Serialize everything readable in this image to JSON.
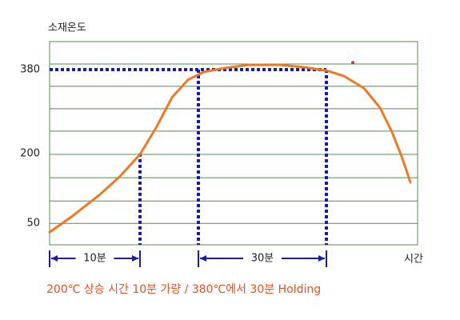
{
  "chart_data": {
    "type": "line",
    "y_label": "소재온도",
    "x_label": "시간",
    "caption": "200℃ 상승 시간 10분 가량 / 380℃에서 30분 Holding",
    "xlim": [
      0,
      460
    ],
    "ylim": [
      4,
      440
    ],
    "yticks": [
      50,
      200,
      380
    ],
    "grid_y": [
      50,
      98,
      148,
      198,
      248,
      296,
      344,
      392
    ],
    "grid_color": "#4f8f4f",
    "x": [
      0,
      28,
      63,
      88,
      113,
      133,
      153,
      173,
      193,
      218,
      248,
      288,
      318,
      346,
      368,
      393,
      413,
      428,
      440,
      451
    ],
    "series": [
      {
        "color": "#f07820",
        "values": [
          31,
          65,
          112,
          151,
          198,
          255,
          320,
          358,
          375,
          383,
          390,
          390,
          385,
          378,
          366,
          340,
          298,
          246,
          194,
          138
        ]
      }
    ],
    "markers": [
      {
        "x": 113,
        "y": 200
      },
      {
        "x": 186,
        "y": 380
      },
      {
        "x": 346,
        "y": 380
      }
    ],
    "marker_color": "#1a1aa8",
    "spans": [
      {
        "from": 0,
        "to": 113,
        "label": "10분"
      },
      {
        "from": 186,
        "to": 346,
        "label": "30분"
      }
    ],
    "point": {
      "x": 379,
      "y": 395,
      "color": "#d03030"
    }
  }
}
